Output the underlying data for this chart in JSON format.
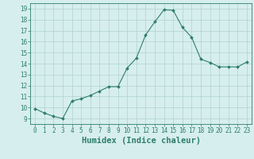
{
  "x": [
    0,
    1,
    2,
    3,
    4,
    5,
    6,
    7,
    8,
    9,
    10,
    11,
    12,
    13,
    14,
    15,
    16,
    17,
    18,
    19,
    20,
    21,
    22,
    23
  ],
  "y": [
    9.9,
    9.5,
    9.2,
    9.0,
    10.6,
    10.8,
    11.1,
    11.5,
    11.9,
    11.9,
    13.6,
    14.5,
    16.6,
    17.8,
    18.9,
    18.85,
    17.3,
    16.4,
    14.4,
    14.1,
    13.7,
    13.7,
    13.7,
    14.15
  ],
  "line_color": "#2e7d6e",
  "marker": "D",
  "marker_size": 2.0,
  "bg_color": "#d6eeee",
  "grid_color": "#b0d0d0",
  "xlabel": "Humidex (Indice chaleur)",
  "xlim": [
    -0.5,
    23.5
  ],
  "ylim": [
    8.5,
    19.5
  ],
  "yticks": [
    9,
    10,
    11,
    12,
    13,
    14,
    15,
    16,
    17,
    18,
    19
  ],
  "xticks": [
    0,
    1,
    2,
    3,
    4,
    5,
    6,
    7,
    8,
    9,
    10,
    11,
    12,
    13,
    14,
    15,
    16,
    17,
    18,
    19,
    20,
    21,
    22,
    23
  ],
  "tick_color": "#2e7d6e",
  "label_color": "#2e7d6e",
  "xlabel_fontsize": 7.5,
  "tick_fontsize": 5.5,
  "linewidth": 0.8
}
